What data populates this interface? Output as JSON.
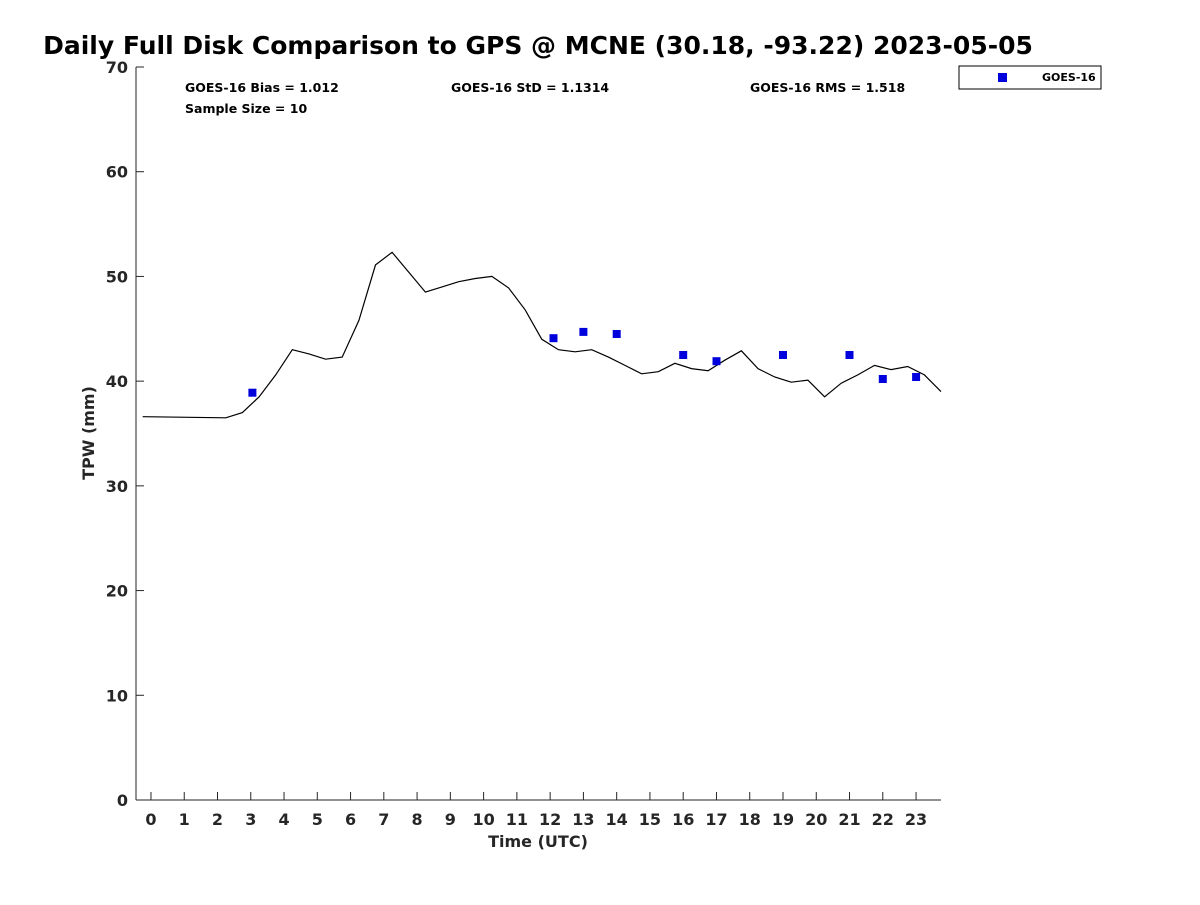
{
  "chart_data": {
    "type": "scatter",
    "title": "Daily Full Disk Comparison to GPS @ MCNE (30.18, -93.22) 2023-05-05",
    "xlabel": "Time (UTC)",
    "ylabel": "TPW (mm)",
    "xlim": [
      -0.45,
      23.75
    ],
    "ylim": [
      0,
      70
    ],
    "x_ticks": [
      0,
      1,
      2,
      3,
      4,
      5,
      6,
      7,
      8,
      9,
      10,
      11,
      12,
      13,
      14,
      15,
      16,
      17,
      18,
      19,
      20,
      21,
      22,
      23
    ],
    "y_ticks": [
      0,
      10,
      20,
      30,
      40,
      50,
      60,
      70
    ],
    "grid": false,
    "legend_position": "top-right-outside",
    "stats": {
      "bias": "GOES-16 Bias = 1.012",
      "std": "GOES-16 StD = 1.1314",
      "rms": "GOES-16 RMS = 1.518",
      "sample": "Sample Size = 10"
    },
    "gps_line": {
      "color": "#000000",
      "x": [
        -0.25,
        2.25,
        2.75,
        3.25,
        3.75,
        4.25,
        4.75,
        5.25,
        5.75,
        6.25,
        6.75,
        7.25,
        7.75,
        8.25,
        8.75,
        9.25,
        9.75,
        10.25,
        10.75,
        11.25,
        11.75,
        12.25,
        12.75,
        13.25,
        13.75,
        14.25,
        14.75,
        15.25,
        15.75,
        16.25,
        16.75,
        17.25,
        17.75,
        18.25,
        18.75,
        19.25,
        19.75,
        20.25,
        20.75,
        21.25,
        21.75,
        22.25,
        22.75,
        23.25,
        23.75
      ],
      "y": [
        36.6,
        36.5,
        37.0,
        38.5,
        40.6,
        43.0,
        42.6,
        42.1,
        42.3,
        45.8,
        51.1,
        52.3,
        50.4,
        48.5,
        49.0,
        49.5,
        49.8,
        50.0,
        48.9,
        46.8,
        44.0,
        43.0,
        42.8,
        43.0,
        42.3,
        41.5,
        40.7,
        40.9,
        41.7,
        41.2,
        41.0,
        42.0,
        42.9,
        41.2,
        40.4,
        39.9,
        40.1,
        38.5,
        39.8,
        40.6,
        41.5,
        41.1,
        41.4,
        40.6,
        39.0
      ]
    },
    "series": [
      {
        "name": "GOES-16",
        "color": "#0000dd",
        "x": [
          3.05,
          12.1,
          13.0,
          14.0,
          16.0,
          17.0,
          19.0,
          21.0,
          22.0,
          23.0
        ],
        "y": [
          38.9,
          44.1,
          44.7,
          44.5,
          42.5,
          41.9,
          42.5,
          42.5,
          40.2,
          40.4
        ]
      }
    ]
  }
}
